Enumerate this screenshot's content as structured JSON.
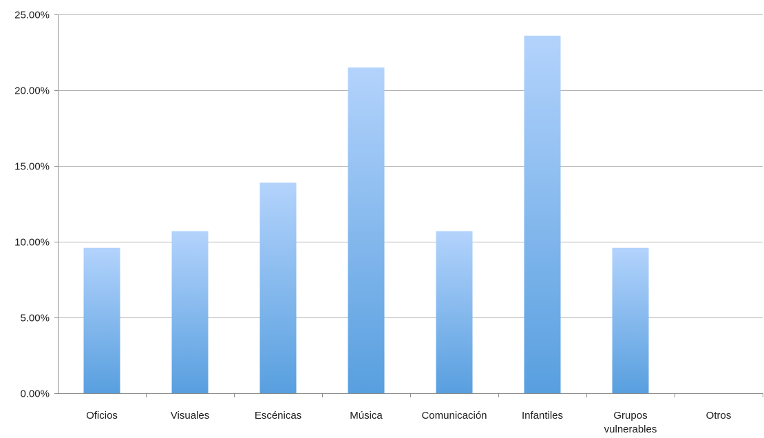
{
  "chart_data": {
    "type": "bar",
    "title": "",
    "xlabel": "",
    "ylabel": "",
    "categories": [
      "Oficios",
      "Visuales",
      "Escénicas",
      "Música",
      "Comunicación",
      "Infantiles",
      "Grupos vulnerables",
      "Otros"
    ],
    "category_label_lines": [
      [
        "Oficios"
      ],
      [
        "Visuales"
      ],
      [
        "Escénicas"
      ],
      [
        "Música"
      ],
      [
        "Comunicación"
      ],
      [
        "Infantiles"
      ],
      [
        "Grupos",
        "vulnerables"
      ],
      [
        "Otros"
      ]
    ],
    "values": [
      0.096,
      0.107,
      0.139,
      0.215,
      0.107,
      0.236,
      0.096,
      0.0
    ],
    "ylim": [
      0,
      0.25
    ],
    "yticks": [
      0,
      0.05,
      0.1,
      0.15,
      0.2,
      0.25
    ],
    "ytick_labels": [
      "0.00%",
      "5.00%",
      "10.00%",
      "15.00%",
      "20.00%",
      "25.00%"
    ],
    "grid": true,
    "legend": "none",
    "colors": {
      "bar_top": "#b3d3fc",
      "bar_bottom": "#589fdf",
      "grid": "#b3b3b3",
      "axis": "#8c8c8c"
    }
  }
}
